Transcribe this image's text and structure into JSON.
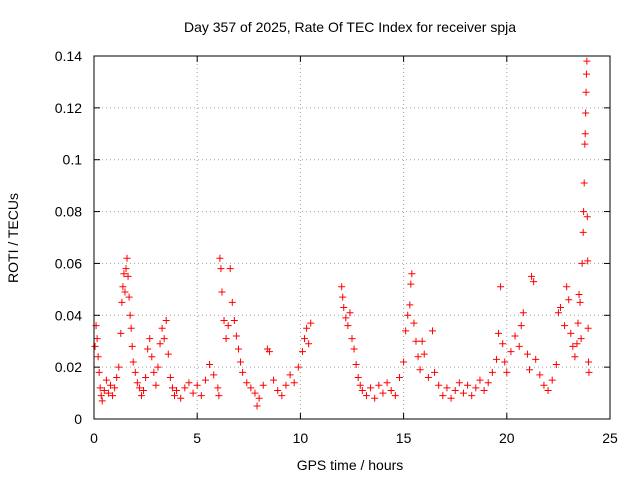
{
  "chart_data": {
    "type": "scatter",
    "title": "Day 357 of 2025, Rate Of TEC Index for receiver spja",
    "xlabel": "GPS time / hours",
    "ylabel": "ROTI / TECUs",
    "xlim": [
      0,
      25
    ],
    "ylim": [
      0,
      0.14
    ],
    "x_ticks": [
      0,
      5,
      10,
      15,
      20,
      25
    ],
    "x_tick_labels": [
      "0",
      "5",
      "10",
      "15",
      "20",
      "25"
    ],
    "y_ticks": [
      0,
      0.02,
      0.04,
      0.06,
      0.08,
      0.1,
      0.12,
      0.14
    ],
    "y_tick_labels": [
      "0",
      "0.02",
      "0.04",
      "0.06",
      "0.08",
      "0.1",
      "0.12",
      "0.14"
    ],
    "grid": true,
    "marker": "plus",
    "color": "#ff0000",
    "series": [
      {
        "name": "ROTI",
        "points": [
          [
            0.05,
            0.028
          ],
          [
            0.1,
            0.036
          ],
          [
            0.15,
            0.031
          ],
          [
            0.2,
            0.024
          ],
          [
            0.25,
            0.018
          ],
          [
            0.3,
            0.012
          ],
          [
            0.35,
            0.009
          ],
          [
            0.4,
            0.007
          ],
          [
            0.5,
            0.011
          ],
          [
            0.6,
            0.015
          ],
          [
            0.7,
            0.01
          ],
          [
            0.8,
            0.013
          ],
          [
            0.9,
            0.009
          ],
          [
            1.0,
            0.012
          ],
          [
            1.1,
            0.016
          ],
          [
            1.2,
            0.02
          ],
          [
            1.3,
            0.033
          ],
          [
            1.35,
            0.045
          ],
          [
            1.4,
            0.051
          ],
          [
            1.45,
            0.056
          ],
          [
            1.5,
            0.049
          ],
          [
            1.55,
            0.058
          ],
          [
            1.6,
            0.062
          ],
          [
            1.65,
            0.055
          ],
          [
            1.7,
            0.047
          ],
          [
            1.75,
            0.04
          ],
          [
            1.8,
            0.035
          ],
          [
            1.85,
            0.028
          ],
          [
            1.9,
            0.022
          ],
          [
            2.0,
            0.018
          ],
          [
            2.1,
            0.014
          ],
          [
            2.2,
            0.012
          ],
          [
            2.3,
            0.009
          ],
          [
            2.4,
            0.011
          ],
          [
            2.5,
            0.016
          ],
          [
            2.6,
            0.027
          ],
          [
            2.7,
            0.031
          ],
          [
            2.8,
            0.024
          ],
          [
            2.9,
            0.018
          ],
          [
            3.0,
            0.013
          ],
          [
            3.1,
            0.02
          ],
          [
            3.2,
            0.029
          ],
          [
            3.3,
            0.035
          ],
          [
            3.4,
            0.031
          ],
          [
            3.5,
            0.038
          ],
          [
            3.6,
            0.025
          ],
          [
            3.7,
            0.016
          ],
          [
            3.8,
            0.012
          ],
          [
            3.9,
            0.009
          ],
          [
            4.0,
            0.011
          ],
          [
            4.2,
            0.008
          ],
          [
            4.4,
            0.012
          ],
          [
            4.6,
            0.014
          ],
          [
            4.8,
            0.01
          ],
          [
            5.0,
            0.013
          ],
          [
            5.2,
            0.009
          ],
          [
            5.4,
            0.015
          ],
          [
            5.6,
            0.021
          ],
          [
            5.8,
            0.017
          ],
          [
            6.0,
            0.012
          ],
          [
            6.05,
            0.009
          ],
          [
            6.1,
            0.062
          ],
          [
            6.15,
            0.058
          ],
          [
            6.2,
            0.049
          ],
          [
            6.3,
            0.038
          ],
          [
            6.4,
            0.031
          ],
          [
            6.5,
            0.036
          ],
          [
            6.6,
            0.058
          ],
          [
            6.7,
            0.045
          ],
          [
            6.8,
            0.038
          ],
          [
            6.9,
            0.032
          ],
          [
            7.0,
            0.027
          ],
          [
            7.1,
            0.022
          ],
          [
            7.2,
            0.018
          ],
          [
            7.4,
            0.014
          ],
          [
            7.6,
            0.012
          ],
          [
            7.8,
            0.01
          ],
          [
            7.9,
            0.005
          ],
          [
            8.0,
            0.008
          ],
          [
            8.2,
            0.013
          ],
          [
            8.4,
            0.027
          ],
          [
            8.5,
            0.026
          ],
          [
            8.7,
            0.015
          ],
          [
            8.9,
            0.011
          ],
          [
            9.1,
            0.009
          ],
          [
            9.3,
            0.013
          ],
          [
            9.5,
            0.017
          ],
          [
            9.7,
            0.014
          ],
          [
            9.9,
            0.02
          ],
          [
            10.1,
            0.026
          ],
          [
            10.2,
            0.031
          ],
          [
            10.3,
            0.035
          ],
          [
            10.4,
            0.029
          ],
          [
            10.5,
            0.037
          ],
          [
            12.0,
            0.051
          ],
          [
            12.05,
            0.047
          ],
          [
            12.1,
            0.043
          ],
          [
            12.2,
            0.039
          ],
          [
            12.3,
            0.036
          ],
          [
            12.4,
            0.041
          ],
          [
            12.5,
            0.031
          ],
          [
            12.6,
            0.027
          ],
          [
            12.7,
            0.021
          ],
          [
            12.8,
            0.016
          ],
          [
            12.9,
            0.013
          ],
          [
            13.0,
            0.011
          ],
          [
            13.2,
            0.009
          ],
          [
            13.4,
            0.012
          ],
          [
            13.6,
            0.008
          ],
          [
            13.8,
            0.013
          ],
          [
            14.0,
            0.01
          ],
          [
            14.2,
            0.014
          ],
          [
            14.4,
            0.011
          ],
          [
            14.6,
            0.009
          ],
          [
            14.8,
            0.016
          ],
          [
            15.0,
            0.022
          ],
          [
            15.1,
            0.034
          ],
          [
            15.2,
            0.04
          ],
          [
            15.3,
            0.044
          ],
          [
            15.35,
            0.052
          ],
          [
            15.4,
            0.056
          ],
          [
            15.5,
            0.037
          ],
          [
            15.6,
            0.03
          ],
          [
            15.7,
            0.024
          ],
          [
            15.8,
            0.019
          ],
          [
            15.9,
            0.03
          ],
          [
            16.0,
            0.025
          ],
          [
            16.2,
            0.016
          ],
          [
            16.4,
            0.034
          ],
          [
            16.5,
            0.018
          ],
          [
            16.7,
            0.013
          ],
          [
            16.9,
            0.009
          ],
          [
            17.1,
            0.012
          ],
          [
            17.3,
            0.008
          ],
          [
            17.5,
            0.011
          ],
          [
            17.7,
            0.014
          ],
          [
            17.9,
            0.01
          ],
          [
            18.1,
            0.013
          ],
          [
            18.3,
            0.009
          ],
          [
            18.5,
            0.012
          ],
          [
            18.7,
            0.015
          ],
          [
            18.9,
            0.011
          ],
          [
            19.1,
            0.014
          ],
          [
            19.3,
            0.018
          ],
          [
            19.5,
            0.023
          ],
          [
            19.6,
            0.033
          ],
          [
            19.7,
            0.051
          ],
          [
            19.8,
            0.029
          ],
          [
            19.9,
            0.022
          ],
          [
            20.0,
            0.018
          ],
          [
            20.2,
            0.026
          ],
          [
            20.4,
            0.032
          ],
          [
            20.6,
            0.028
          ],
          [
            20.7,
            0.036
          ],
          [
            20.8,
            0.041
          ],
          [
            21.0,
            0.025
          ],
          [
            21.1,
            0.019
          ],
          [
            21.2,
            0.055
          ],
          [
            21.3,
            0.053
          ],
          [
            21.4,
            0.023
          ],
          [
            21.6,
            0.017
          ],
          [
            21.8,
            0.013
          ],
          [
            22.0,
            0.011
          ],
          [
            22.2,
            0.015
          ],
          [
            22.4,
            0.021
          ],
          [
            22.5,
            0.041
          ],
          [
            22.6,
            0.043
          ],
          [
            22.8,
            0.036
          ],
          [
            22.9,
            0.051
          ],
          [
            23.0,
            0.046
          ],
          [
            23.1,
            0.033
          ],
          [
            23.2,
            0.028
          ],
          [
            23.3,
            0.024
          ],
          [
            23.4,
            0.029
          ],
          [
            23.45,
            0.037
          ],
          [
            23.5,
            0.048
          ],
          [
            23.55,
            0.045
          ],
          [
            23.6,
            0.031
          ],
          [
            23.65,
            0.06
          ],
          [
            23.7,
            0.072
          ],
          [
            23.72,
            0.08
          ],
          [
            23.75,
            0.091
          ],
          [
            23.78,
            0.106
          ],
          [
            23.8,
            0.11
          ],
          [
            23.82,
            0.118
          ],
          [
            23.84,
            0.126
          ],
          [
            23.86,
            0.133
          ],
          [
            23.88,
            0.138
          ],
          [
            23.9,
            0.078
          ],
          [
            23.92,
            0.061
          ],
          [
            23.94,
            0.035
          ],
          [
            23.96,
            0.022
          ],
          [
            23.98,
            0.018
          ]
        ]
      }
    ]
  }
}
